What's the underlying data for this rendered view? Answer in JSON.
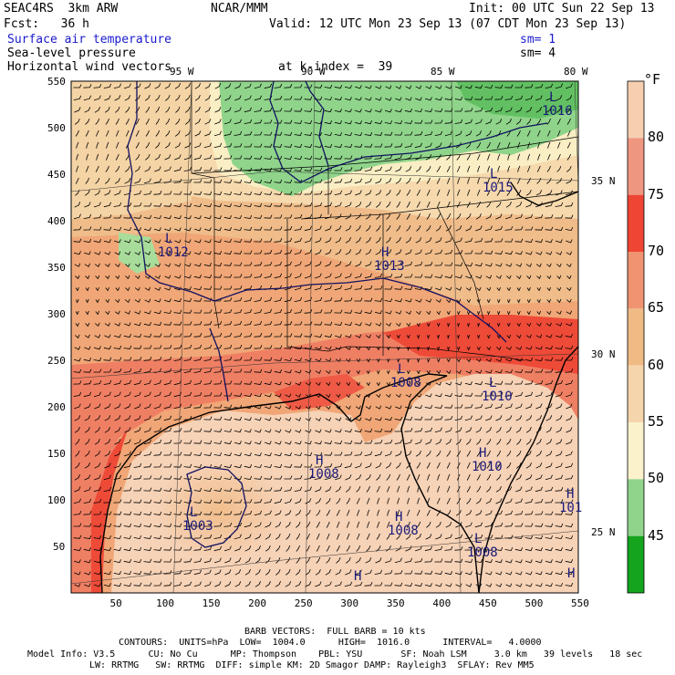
{
  "header": {
    "model": "SEAC4RS  3km ARW",
    "center": "NCAR/MMM",
    "init": "Init: 00 UTC Sun 22 Sep 13",
    "fcst": "Fcst:   36 h",
    "valid": "Valid: 12 UTC Mon 23 Sep 13 (07 CDT Mon 23 Sep 13)",
    "field1": "Surface air temperature",
    "field1_sm": "sm= 1",
    "field2": "Sea-level pressure",
    "field2_sm": "sm= 4",
    "field3": "Horizontal wind vectors",
    "level": "at k-index =  39"
  },
  "colorbar": {
    "unit": "°F",
    "labels": [
      "80",
      "75",
      "70",
      "65",
      "60",
      "55",
      "50",
      "45"
    ],
    "colors": [
      "#f5cfb0",
      "#ef9680",
      "#ee4535",
      "#f09370",
      "#f0ba85",
      "#f5d5ac",
      "#fbf2cc",
      "#8fd48a",
      "#14a41e"
    ]
  },
  "axes": {
    "x_ticks": [
      "50",
      "100",
      "150",
      "200",
      "250",
      "300",
      "350",
      "400",
      "450",
      "500",
      "550"
    ],
    "y_ticks": [
      "550",
      "500",
      "450",
      "400",
      "350",
      "300",
      "250",
      "200",
      "150",
      "100",
      "50"
    ],
    "lon_labels": [
      "95 W",
      "90 W",
      "85 W",
      "80 W"
    ],
    "lat_labels": [
      "35 N",
      "30 N",
      "25 N"
    ]
  },
  "pressure_labels": [
    {
      "kind": "L",
      "value": "1016"
    },
    {
      "kind": "L",
      "value": "1015"
    },
    {
      "kind": "L",
      "value": "1012"
    },
    {
      "kind": "H",
      "value": "1013"
    },
    {
      "kind": "L",
      "value": "1008"
    },
    {
      "kind": "L",
      "value": "1010"
    },
    {
      "kind": "H",
      "value": "1010"
    },
    {
      "kind": "H",
      "value": "1008"
    },
    {
      "kind": "L",
      "value": "1003"
    },
    {
      "kind": "H",
      "value": "1008"
    },
    {
      "kind": "L",
      "value": "1008"
    },
    {
      "kind": "H",
      "value": "101"
    },
    {
      "kind": "H",
      "value": ""
    },
    {
      "kind": "H",
      "value": ""
    }
  ],
  "footer": {
    "barb": "BARB VECTORS:  FULL BARB = 10 kts",
    "contours": "CONTOURS:  UNITS=hPa  LOW=  1004.0      HIGH=  1016.0      INTERVAL=   4.0000",
    "model_info": "Model Info: V3.5      CU: No Cu      MP: Thompson    PBL: YSU       SF: Noah LSM     3.0 km   39 levels   18 sec",
    "model_info2": "LW: RRTMG   SW: RRTMG  DIFF: simple KM: 2D Smagor DAMP: Rayleigh3  SFLAY: Rev MM5"
  }
}
